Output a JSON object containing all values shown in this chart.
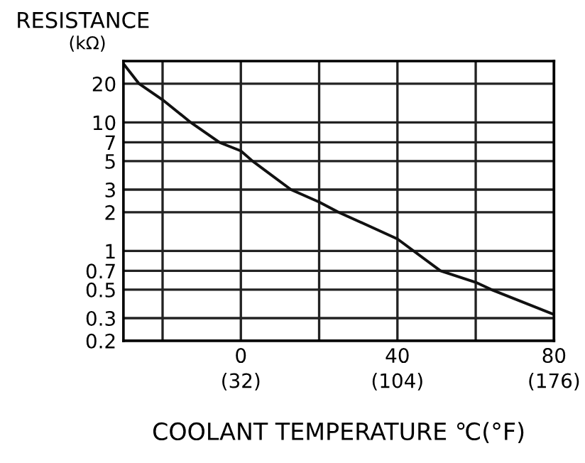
{
  "chart_data": {
    "type": "line",
    "title": "RESISTANCE",
    "ylabel": "(kΩ)",
    "xlabel": "COOLANT TEMPERATURE ℃(°F)",
    "x": [
      -30,
      -26,
      -20,
      -12.8,
      -5.5,
      0,
      3,
      12.8,
      20,
      25,
      40,
      51,
      60,
      64,
      80
    ],
    "series": [
      {
        "color": "#111111",
        "values": [
          28.6,
          20,
          15,
          10,
          7,
          6,
          5,
          3,
          2.4,
          2,
          1.24,
          0.7,
          0.57,
          0.5,
          0.32
        ]
      }
    ],
    "xlim": [
      -30,
      80
    ],
    "xticks": [
      {
        "value": -20,
        "label": null
      },
      0,
      {
        "value": 20,
        "label": null
      },
      40,
      {
        "value": 60,
        "label": null
      },
      80
    ],
    "x2lim": [
      -22,
      176
    ],
    "x2ticks": [
      {
        "value": 32,
        "label": "(32)"
      },
      {
        "value": 104,
        "label": "(104)"
      },
      {
        "value": 176,
        "label": "(176)"
      }
    ],
    "ylim": [
      0.2,
      30
    ],
    "yticks": [
      0.2,
      0.3,
      0.5,
      0.7,
      1,
      2,
      3,
      5,
      7,
      10,
      20
    ],
    "log": "y",
    "grid": true,
    "marker": "none",
    "line_style": "solid",
    "legend": false
  }
}
